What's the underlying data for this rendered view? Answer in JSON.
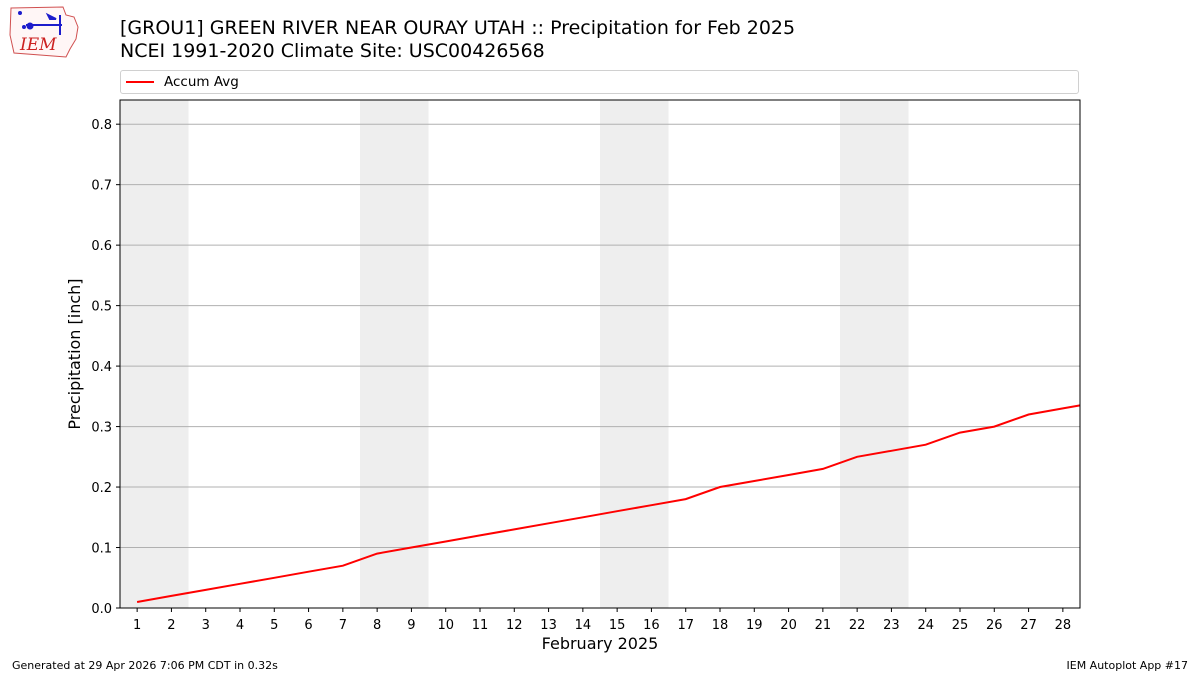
{
  "header": {
    "title_line1": "[GROU1] GREEN RIVER NEAR OURAY UTAH :: Precipitation for Feb 2025",
    "title_line2": "NCEI 1991-2020 Climate Site: USC00426568"
  },
  "logo": {
    "text": "IEM",
    "icon": "iem-state-logo"
  },
  "footer": {
    "left": "Generated at 29 Apr 2026 7:06 PM CDT in 0.32s",
    "right": "IEM Autoplot App #17"
  },
  "chart_data": {
    "type": "line",
    "title": "[GROU1] GREEN RIVER NEAR OURAY UTAH :: Precipitation for Feb 2025",
    "subtitle": "NCEI 1991-2020 Climate Site: USC00426568",
    "xlabel": "February 2025",
    "ylabel": "Precipitation [inch]",
    "xlim": [
      0.5,
      28.5
    ],
    "ylim": [
      0,
      0.84
    ],
    "x_ticks": [
      1,
      2,
      3,
      4,
      5,
      6,
      7,
      8,
      9,
      10,
      11,
      12,
      13,
      14,
      15,
      16,
      17,
      18,
      19,
      20,
      21,
      22,
      23,
      24,
      25,
      26,
      27,
      28
    ],
    "y_ticks": [
      "0.0",
      "0.1",
      "0.2",
      "0.3",
      "0.4",
      "0.5",
      "0.6",
      "0.7",
      "0.8"
    ],
    "grid": "horizontal",
    "legend_position": "top",
    "weekend_shading": [
      [
        0.5,
        2.5
      ],
      [
        7.5,
        9.5
      ],
      [
        14.5,
        16.5
      ],
      [
        21.5,
        23.5
      ]
    ],
    "shading_color": "#eeeeee",
    "series": [
      {
        "name": "Accum Avg",
        "color": "#ff0000",
        "x": [
          1,
          2,
          3,
          4,
          5,
          6,
          7,
          8,
          9,
          10,
          11,
          12,
          13,
          14,
          15,
          16,
          17,
          18,
          19,
          20,
          21,
          22,
          23,
          24,
          25,
          26,
          27,
          28,
          28.5
        ],
        "values": [
          0.01,
          0.02,
          0.03,
          0.04,
          0.05,
          0.06,
          0.07,
          0.09,
          0.1,
          0.11,
          0.12,
          0.13,
          0.14,
          0.15,
          0.16,
          0.17,
          0.18,
          0.2,
          0.21,
          0.22,
          0.23,
          0.25,
          0.26,
          0.27,
          0.29,
          0.3,
          0.32,
          0.33,
          0.335
        ]
      }
    ]
  }
}
